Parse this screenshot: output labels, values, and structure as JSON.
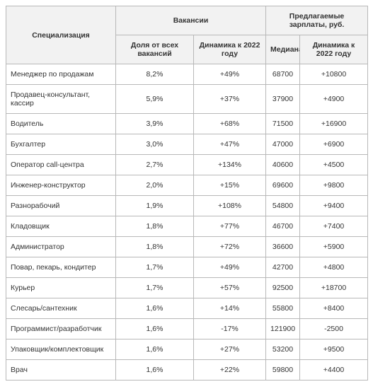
{
  "headers": {
    "spec": "Специализация",
    "vac_group": "Вакансии",
    "sal_group": "Предлагаемые зарплаты, руб.",
    "share": "Доля от всех вакансий",
    "dyn_vac": "Динамика к 2022 году",
    "median": "Медиана",
    "dyn_sal": "Динамика к 2022 году"
  },
  "rows": [
    {
      "spec": "Менеджер по продажам",
      "share": "8,2%",
      "dyn_vac": "+49%",
      "median": "68700",
      "dyn_sal": "+10800"
    },
    {
      "spec": "Продавец-консультант, кассир",
      "share": "5,9%",
      "dyn_vac": "+37%",
      "median": "37900",
      "dyn_sal": "+4900"
    },
    {
      "spec": "Водитель",
      "share": "3,9%",
      "dyn_vac": "+68%",
      "median": "71500",
      "dyn_sal": "+16900"
    },
    {
      "spec": "Бухгалтер",
      "share": "3,0%",
      "dyn_vac": "+47%",
      "median": "47000",
      "dyn_sal": "+6900"
    },
    {
      "spec": "Оператор call-центра",
      "share": "2,7%",
      "dyn_vac": "+134%",
      "median": "40600",
      "dyn_sal": "+4500"
    },
    {
      "spec": "Инженер-конструктор",
      "share": "2,0%",
      "dyn_vac": "+15%",
      "median": "69600",
      "dyn_sal": "+9800"
    },
    {
      "spec": "Разнорабочий",
      "share": "1,9%",
      "dyn_vac": "+108%",
      "median": "54800",
      "dyn_sal": "+9400"
    },
    {
      "spec": "Кладовщик",
      "share": "1,8%",
      "dyn_vac": "+77%",
      "median": "46700",
      "dyn_sal": "+7400"
    },
    {
      "spec": "Администратор",
      "share": "1,8%",
      "dyn_vac": "+72%",
      "median": "36600",
      "dyn_sal": "+5900"
    },
    {
      "spec": "Повар, пекарь, кондитер",
      "share": "1,7%",
      "dyn_vac": "+49%",
      "median": "42700",
      "dyn_sal": "+4800"
    },
    {
      "spec": "Курьер",
      "share": "1,7%",
      "dyn_vac": "+57%",
      "median": "92500",
      "dyn_sal": "+18700"
    },
    {
      "spec": "Слесарь/сантехник",
      "share": "1,6%",
      "dyn_vac": "+14%",
      "median": "55800",
      "dyn_sal": "+8400"
    },
    {
      "spec": "Программист/разработчик",
      "share": "1,6%",
      "dyn_vac": "-17%",
      "median": "121900",
      "dyn_sal": "-2500"
    },
    {
      "spec": "Упаковщик/комплектовщик",
      "share": "1,6%",
      "dyn_vac": "+27%",
      "median": "53200",
      "dyn_sal": "+9500"
    },
    {
      "spec": "Врач",
      "share": "1,6%",
      "dyn_vac": "+22%",
      "median": "59800",
      "dyn_sal": "+4400"
    }
  ]
}
